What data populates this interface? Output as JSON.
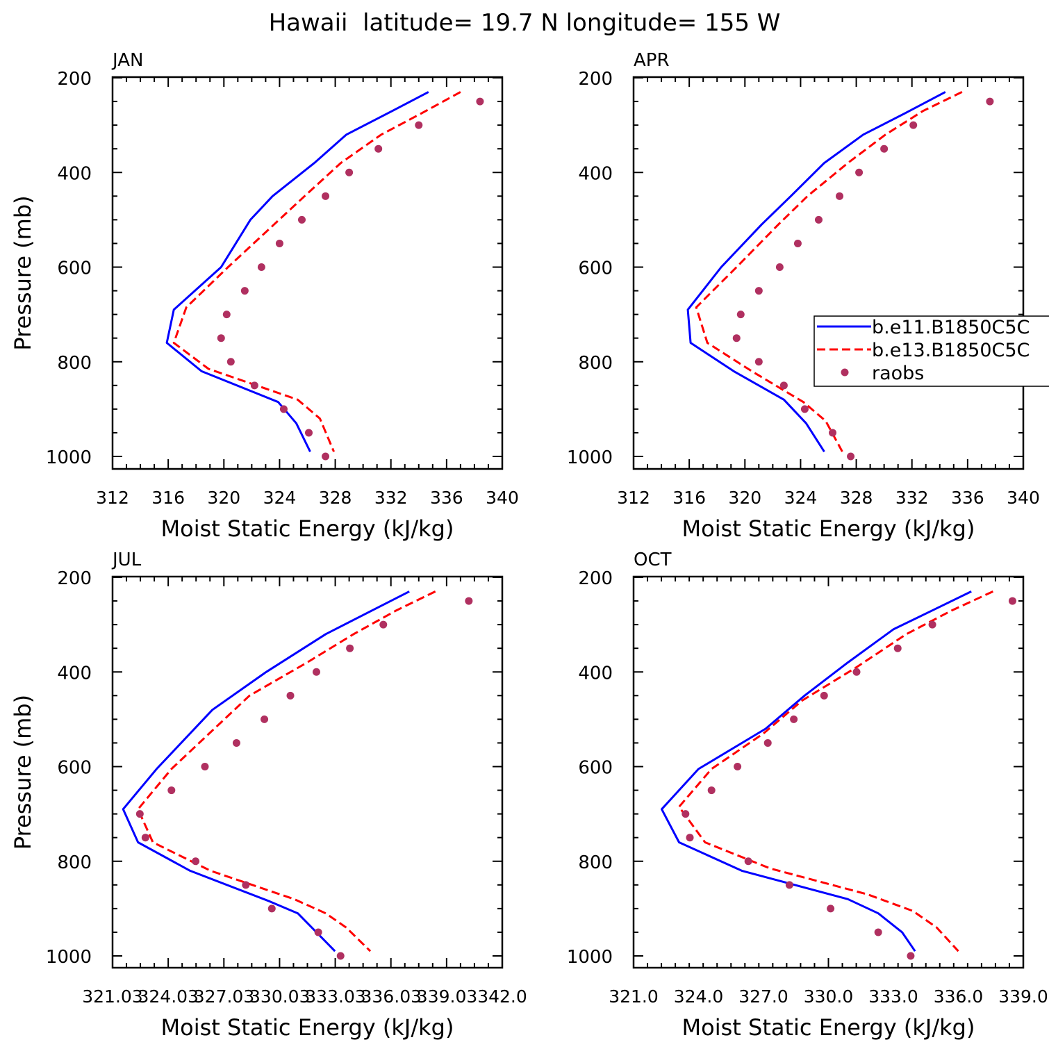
{
  "figure_title": "Hawaii  latitude= 19.7 N longitude= 155 W",
  "legend": {
    "entries": [
      {
        "label": "b.e11.B1850C5C",
        "color": "#0000ff",
        "style": "solid"
      },
      {
        "label": "b.e13.B1850C5C",
        "color": "#ff0000",
        "style": "dashed"
      },
      {
        "label": "raobs",
        "color": "#b03060",
        "style": "marker"
      }
    ]
  },
  "colors": {
    "model1": "#0000ff",
    "model2": "#ff0000",
    "raobs": "#b03060",
    "axis": "#000000"
  },
  "chart_data": [
    {
      "type": "line",
      "title": "JAN",
      "xlabel": "Moist Static Energy (kJ/kg)",
      "ylabel": "Pressure (mb)",
      "xlim": [
        312,
        340
      ],
      "ylim": [
        1000,
        200
      ],
      "xticks": [
        312,
        316,
        320,
        324,
        328,
        332,
        336,
        340
      ],
      "xticklabels": [
        "312",
        "316",
        "320",
        "324",
        "328",
        "332",
        "336",
        "340"
      ],
      "yticks": [
        200,
        400,
        600,
        800,
        1000
      ],
      "yticklabels": [
        "200",
        "400",
        "600",
        "800",
        "1000"
      ],
      "series": [
        {
          "name": "b.e11.B1850C5C",
          "color": "#0000ff",
          "style": "solid",
          "x": [
            334.7,
            332.1,
            328.8,
            326.5,
            323.5,
            321.9,
            319.8,
            316.4,
            315.9,
            318.4,
            323.9,
            325.2,
            326.2
          ],
          "y": [
            230,
            270,
            320,
            380,
            450,
            500,
            600,
            690,
            760,
            820,
            885,
            930,
            990
          ]
        },
        {
          "name": "b.e13.B1850C5C",
          "color": "#ff0000",
          "style": "dashed",
          "x": [
            337.0,
            334.2,
            331.3,
            328.4,
            325.8,
            323.6,
            320.3,
            317.3,
            316.4,
            318.9,
            325.3,
            326.9,
            327.9
          ],
          "y": [
            230,
            275,
            320,
            380,
            450,
            510,
            600,
            685,
            760,
            815,
            880,
            920,
            990
          ]
        },
        {
          "name": "raobs",
          "color": "#b03060",
          "style": "marker",
          "x": [
            338.4,
            334.0,
            331.1,
            329.0,
            327.3,
            325.6,
            324.0,
            322.7,
            321.5,
            320.2,
            319.8,
            320.5,
            322.2,
            324.3,
            326.1,
            327.3
          ],
          "y": [
            250,
            300,
            350,
            400,
            450,
            500,
            550,
            600,
            650,
            700,
            750,
            800,
            850,
            900,
            950,
            1000
          ]
        }
      ]
    },
    {
      "type": "line",
      "title": "APR",
      "xlabel": "Moist Static Energy (kJ/kg)",
      "ylabel": "",
      "xlim": [
        312,
        340
      ],
      "ylim": [
        1000,
        200
      ],
      "xticks": [
        312,
        316,
        320,
        324,
        328,
        332,
        336,
        340
      ],
      "xticklabels": [
        "312",
        "316",
        "320",
        "324",
        "328",
        "332",
        "336",
        "340"
      ],
      "yticks": [
        200,
        400,
        600,
        800,
        1000
      ],
      "yticklabels": [
        "200",
        "400",
        "600",
        "800",
        "1000"
      ],
      "series": [
        {
          "name": "b.e11.B1850C5C",
          "color": "#0000ff",
          "style": "solid",
          "x": [
            334.4,
            331.5,
            328.5,
            325.7,
            323.3,
            321.2,
            318.3,
            315.9,
            316.1,
            319.2,
            322.8,
            324.4,
            325.7
          ],
          "y": [
            230,
            275,
            320,
            380,
            450,
            510,
            600,
            690,
            760,
            820,
            880,
            930,
            990
          ]
        },
        {
          "name": "b.e13.B1850C5C",
          "color": "#ff0000",
          "style": "dashed",
          "x": [
            335.6,
            332.8,
            330.1,
            327.4,
            324.5,
            322.4,
            319.4,
            316.5,
            317.3,
            320.5,
            324.2,
            325.8,
            327.0
          ],
          "y": [
            230,
            270,
            320,
            380,
            450,
            510,
            600,
            685,
            760,
            820,
            885,
            925,
            990
          ]
        },
        {
          "name": "raobs",
          "color": "#b03060",
          "style": "marker",
          "x": [
            337.6,
            332.1,
            330.0,
            328.2,
            326.8,
            325.3,
            323.8,
            322.5,
            321.0,
            319.7,
            319.4,
            321.0,
            322.8,
            324.3,
            326.3,
            327.6
          ],
          "y": [
            250,
            300,
            350,
            400,
            450,
            500,
            550,
            600,
            650,
            700,
            750,
            800,
            850,
            900,
            950,
            1000
          ]
        }
      ]
    },
    {
      "type": "line",
      "title": "JUL",
      "xlabel": "Moist Static Energy (kJ/kg)",
      "ylabel": "Pressure (mb)",
      "xlim": [
        321.03,
        342.0
      ],
      "ylim": [
        1000,
        200
      ],
      "xticks": [
        321.03,
        324.03,
        327.03,
        330.03,
        333.03,
        336.03,
        339.03,
        342.0
      ],
      "xticklabels": [
        "321.03",
        "324.03",
        "327.03",
        "330.03",
        "333.03",
        "336.03",
        "339.03",
        "342.0"
      ],
      "yticks": [
        200,
        400,
        600,
        800,
        1000
      ],
      "yticklabels": [
        "200",
        "400",
        "600",
        "800",
        "1000"
      ],
      "series": [
        {
          "name": "b.e11.B1850C5C",
          "color": "#0000ff",
          "style": "solid",
          "x": [
            337.0,
            335.0,
            332.5,
            329.3,
            326.4,
            323.4,
            321.6,
            322.4,
            325.2,
            329.5,
            331.0,
            332.0,
            333.0
          ],
          "y": [
            230,
            270,
            320,
            400,
            480,
            605,
            690,
            760,
            820,
            885,
            910,
            950,
            990
          ]
        },
        {
          "name": "b.e13.B1850C5C",
          "color": "#ff0000",
          "style": "dashed",
          "x": [
            338.4,
            336.3,
            334.0,
            331.5,
            328.4,
            324.2,
            322.4,
            323.2,
            326.3,
            330.8,
            332.5,
            333.6,
            334.9
          ],
          "y": [
            230,
            270,
            320,
            380,
            450,
            605,
            690,
            760,
            820,
            880,
            910,
            940,
            990
          ]
        },
        {
          "name": "raobs",
          "color": "#b03060",
          "style": "marker",
          "x": [
            340.2,
            335.6,
            333.8,
            332.0,
            330.6,
            329.2,
            327.7,
            326.0,
            324.2,
            322.5,
            322.8,
            325.5,
            328.2,
            329.6,
            332.1,
            333.3
          ],
          "y": [
            250,
            300,
            350,
            400,
            450,
            500,
            550,
            600,
            650,
            700,
            750,
            800,
            850,
            900,
            950,
            1000
          ]
        }
      ]
    },
    {
      "type": "line",
      "title": "OCT",
      "xlabel": "Moist Static Energy (kJ/kg)",
      "ylabel": "",
      "xlim": [
        321.0,
        339.0
      ],
      "ylim": [
        1000,
        200
      ],
      "xticks": [
        321,
        324,
        327,
        330,
        333,
        336,
        339
      ],
      "xticklabels": [
        "321.0",
        "324.0",
        "327.0",
        "330.0",
        "333.0",
        "336.0",
        "339.0"
      ],
      "yticks": [
        200,
        400,
        600,
        800,
        1000
      ],
      "yticklabels": [
        "200",
        "400",
        "600",
        "800",
        "1000"
      ],
      "series": [
        {
          "name": "b.e11.B1850C5C",
          "color": "#0000ff",
          "style": "solid",
          "x": [
            336.6,
            334.8,
            333.0,
            330.9,
            328.9,
            327.1,
            324.0,
            322.3,
            323.1,
            326.0,
            330.9,
            332.3,
            333.4,
            334.0
          ],
          "y": [
            230,
            270,
            310,
            380,
            450,
            520,
            605,
            690,
            760,
            820,
            880,
            910,
            950,
            990
          ]
        },
        {
          "name": "b.e13.B1850C5C",
          "color": "#ff0000",
          "style": "dashed",
          "x": [
            337.6,
            335.7,
            333.6,
            331.3,
            328.8,
            327.0,
            324.6,
            323.1,
            324.3,
            327.3,
            331.8,
            333.9,
            335.0,
            336.0
          ],
          "y": [
            230,
            270,
            320,
            390,
            460,
            530,
            605,
            685,
            760,
            815,
            870,
            905,
            940,
            990
          ]
        },
        {
          "name": "raobs",
          "color": "#b03060",
          "style": "marker",
          "x": [
            338.5,
            334.8,
            333.2,
            331.3,
            329.8,
            328.4,
            327.2,
            325.8,
            324.6,
            323.4,
            323.6,
            326.3,
            328.2,
            330.1,
            332.3,
            333.8
          ],
          "y": [
            250,
            300,
            350,
            400,
            450,
            500,
            550,
            600,
            650,
            700,
            750,
            800,
            850,
            900,
            950,
            1000
          ]
        }
      ]
    }
  ]
}
